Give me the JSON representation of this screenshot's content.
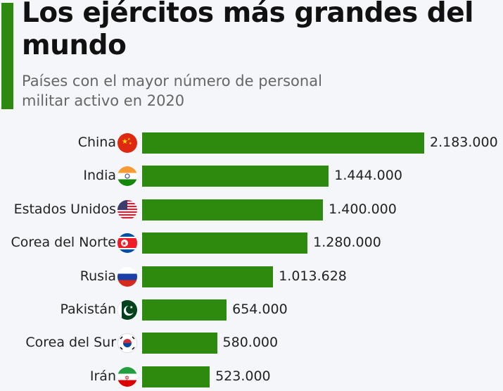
{
  "chart_data": {
    "type": "bar",
    "orientation": "horizontal",
    "title": "Los ejércitos más grandes del mundo",
    "subtitle": "Países con el mayor número de personal militar activo en 2020",
    "categories": [
      "China",
      "India",
      "Estados Unidos",
      "Corea del Norte",
      "Rusia",
      "Pakistán",
      "Corea del Sur",
      "Irán"
    ],
    "values": [
      2183000,
      1444000,
      1400000,
      1280000,
      1013628,
      654000,
      580000,
      523000
    ],
    "data_labels": [
      "2.183.000",
      "1.444.000",
      "1.400.000",
      "1.280.000",
      "1.013.628",
      "654.000",
      "580.000",
      "523.000"
    ],
    "flag_icons": [
      "china-flag",
      "india-flag",
      "usa-flag",
      "north-korea-flag",
      "russia-flag",
      "pakistan-flag",
      "south-korea-flag",
      "iran-flag"
    ],
    "xlim": [
      0,
      2183000
    ],
    "grid": false,
    "colors": {
      "bar": "#2e8a0e",
      "accent": "#2e8a0e",
      "background": "#f4f6f9"
    }
  }
}
